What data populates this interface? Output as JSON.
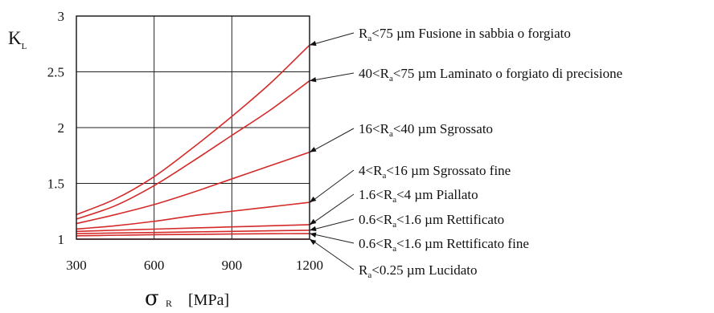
{
  "chart_data": {
    "type": "line",
    "ylabel_main": "K",
    "ylabel_sub": "L",
    "xlabel_symbol": "σ",
    "xlabel_sub": "R",
    "xlabel_unit": "[MPa]",
    "xlim": [
      300,
      1200
    ],
    "ylim": [
      1,
      3
    ],
    "xticks": [
      300,
      600,
      900,
      1200
    ],
    "yticks": [
      1,
      1.5,
      2,
      2.5,
      3
    ],
    "ytick_labels": [
      "1",
      "1.5",
      "2",
      "2.5",
      "3"
    ],
    "grid": true,
    "line_color": "#d42a2a",
    "x": [
      300,
      450,
      600,
      750,
      900,
      1050,
      1200
    ],
    "series": [
      {
        "values": [
          1.22,
          1.36,
          1.56,
          1.82,
          2.1,
          2.4,
          2.74
        ],
        "pre": "R",
        "sub": "a",
        "post": "<75 µm Fusione in sabbia o forgiato"
      },
      {
        "values": [
          1.18,
          1.3,
          1.48,
          1.7,
          1.93,
          2.16,
          2.42
        ],
        "pre": "40<R",
        "sub": "a",
        "post": "<75 µm Laminato o forgiato di precisione"
      },
      {
        "values": [
          1.14,
          1.22,
          1.31,
          1.42,
          1.54,
          1.66,
          1.78
        ],
        "pre": "16<R",
        "sub": "a",
        "post": "<40 µm Sgrossato"
      },
      {
        "values": [
          1.09,
          1.12,
          1.16,
          1.21,
          1.25,
          1.29,
          1.33
        ],
        "pre": "4<R",
        "sub": "a",
        "post": "<16 µm Sgrossato fine"
      },
      {
        "values": [
          1.07,
          1.08,
          1.09,
          1.1,
          1.11,
          1.12,
          1.13
        ],
        "pre": "1.6<R",
        "sub": "a",
        "post": "<4 µm Piallato"
      },
      {
        "values": [
          1.05,
          1.055,
          1.06,
          1.065,
          1.07,
          1.075,
          1.08
        ],
        "pre": "0.6<R",
        "sub": "a",
        "post": "<1.6 µm Rettificato"
      },
      {
        "values": [
          1.03,
          1.035,
          1.04,
          1.043,
          1.046,
          1.049,
          1.05
        ],
        "pre": "0.6<R",
        "sub": "a",
        "post": "<1.6 µm Rettificato fine"
      },
      {
        "values": [
          1.0,
          1.0,
          1.0,
          1.0,
          1.0,
          1.0,
          1.0
        ],
        "pre": "R",
        "sub": "a",
        "post": "<0.25 µm Lucidato"
      }
    ]
  }
}
